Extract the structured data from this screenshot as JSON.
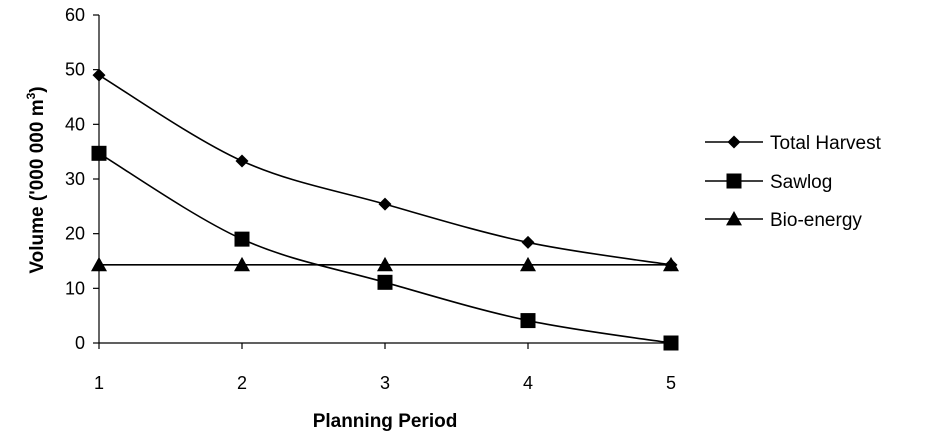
{
  "chart_data": {
    "type": "line",
    "title": "",
    "xlabel": "Planning Period",
    "ylabel": "Volume ('000 000 m",
    "ylabel_sup": "3",
    "ylabel_end": ")",
    "x": [
      1,
      2,
      3,
      4,
      5
    ],
    "x_tick_labels": [
      "1",
      "2",
      "3",
      "4",
      "5"
    ],
    "ylim": [
      0,
      60
    ],
    "y_ticks": [
      0,
      10,
      20,
      30,
      40,
      50,
      60
    ],
    "y_tick_labels": [
      "0",
      "10",
      "20",
      "30",
      "40",
      "50",
      "60"
    ],
    "grid": false,
    "legend_position": "right",
    "series": [
      {
        "name": "Total Harvest",
        "marker": "diamond",
        "smooth": true,
        "values": [
          49,
          33.3,
          25.4,
          18.4,
          14.3
        ]
      },
      {
        "name": "Sawlog",
        "marker": "square",
        "smooth": true,
        "values": [
          34.7,
          19,
          11.1,
          4.1,
          0
        ]
      },
      {
        "name": "Bio-energy",
        "marker": "triangle",
        "smooth": false,
        "values": [
          14.3,
          14.3,
          14.3,
          14.3,
          14.3
        ]
      }
    ],
    "colors": {
      "line": "#000000",
      "marker": "#000000"
    }
  }
}
